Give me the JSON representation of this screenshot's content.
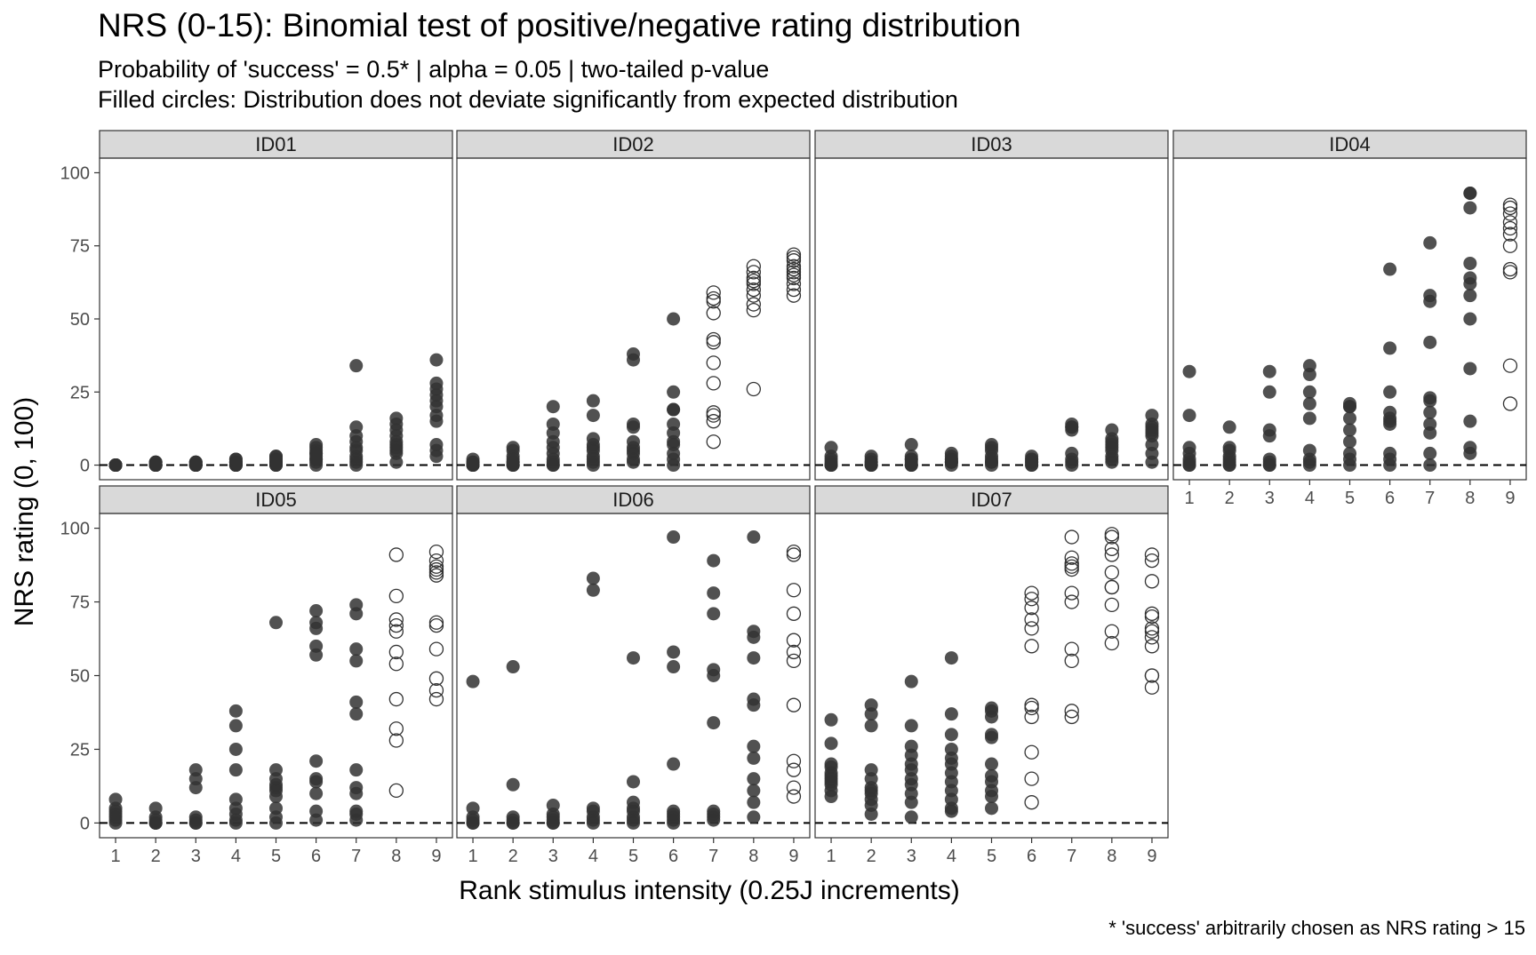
{
  "chart_data": {
    "type": "scatter",
    "title": "NRS (0-15): Binomial test of positive/negative rating distribution",
    "subtitle_lines": [
      "Probability of 'success' = 0.5* | alpha = 0.05 | two-tailed p-value",
      "Filled circles: Distribution does not deviate significantly from expected distribution"
    ],
    "xlabel": "Rank stimulus intensity (0.25J increments)",
    "ylabel": "NRS rating (0, 100)",
    "caption": "* 'success' arbitrarily chosen as NRS rating > 15",
    "x_ticks": [
      1,
      2,
      3,
      4,
      5,
      6,
      7,
      8,
      9
    ],
    "y_ticks": [
      0,
      25,
      50,
      75,
      100
    ],
    "xlim": [
      0.6,
      9.4
    ],
    "ylim": [
      -5,
      105
    ],
    "reference_line": {
      "y": 0,
      "style": "dashed"
    },
    "grid": false,
    "marker_styles": {
      "filled": "#333333",
      "open_stroke": "#333333"
    },
    "panels": [
      {
        "label": "ID01",
        "points": [
          {
            "x": 1,
            "filled": true,
            "values": [
              0,
              0,
              0,
              0,
              0,
              0,
              0,
              0,
              0,
              0
            ]
          },
          {
            "x": 2,
            "filled": true,
            "values": [
              0,
              0,
              0,
              0,
              1,
              1,
              0,
              0,
              0,
              1
            ]
          },
          {
            "x": 3,
            "filled": true,
            "values": [
              0,
              0,
              0,
              1,
              1,
              0,
              0,
              1,
              0,
              0
            ]
          },
          {
            "x": 4,
            "filled": true,
            "values": [
              0,
              0,
              1,
              1,
              2,
              0,
              0,
              0,
              1,
              2
            ]
          },
          {
            "x": 5,
            "filled": true,
            "values": [
              0,
              0,
              1,
              1,
              2,
              3,
              3,
              0,
              1,
              2
            ]
          },
          {
            "x": 6,
            "filled": true,
            "values": [
              0,
              1,
              2,
              3,
              4,
              5,
              6,
              7,
              2,
              4
            ]
          },
          {
            "x": 7,
            "filled": true,
            "values": [
              0,
              1,
              2,
              3,
              5,
              6,
              8,
              10,
              13,
              34
            ]
          },
          {
            "x": 8,
            "filled": true,
            "values": [
              1,
              4,
              5,
              6,
              7,
              8,
              10,
              12,
              14,
              16
            ]
          },
          {
            "x": 9,
            "filled": true,
            "values": [
              3,
              5,
              7,
              15,
              17,
              20,
              22,
              24,
              26,
              28,
              36
            ]
          }
        ]
      },
      {
        "label": "ID02",
        "points": [
          {
            "x": 1,
            "filled": true,
            "values": [
              0,
              0,
              0,
              0,
              1,
              1,
              2,
              0
            ]
          },
          {
            "x": 2,
            "filled": true,
            "values": [
              0,
              0,
              1,
              2,
              3,
              5,
              6,
              0,
              1
            ]
          },
          {
            "x": 3,
            "filled": true,
            "values": [
              0,
              1,
              2,
              4,
              6,
              8,
              11,
              14,
              20,
              0
            ]
          },
          {
            "x": 4,
            "filled": true,
            "values": [
              0,
              1,
              3,
              5,
              6,
              7,
              9,
              17,
              22,
              2
            ]
          },
          {
            "x": 5,
            "filled": true,
            "values": [
              1,
              2,
              4,
              5,
              6,
              8,
              13,
              14,
              36,
              38
            ]
          },
          {
            "x": 6,
            "filled": true,
            "values": [
              0,
              2,
              4,
              7,
              8,
              11,
              14,
              19,
              19,
              25,
              50
            ]
          },
          {
            "x": 7,
            "filled": false,
            "values": [
              8,
              15,
              17,
              18,
              28,
              35,
              42,
              43,
              52,
              56,
              57,
              59
            ]
          },
          {
            "x": 8,
            "filled": false,
            "values": [
              26,
              53,
              55,
              58,
              60,
              62,
              63,
              64,
              66,
              68
            ]
          },
          {
            "x": 9,
            "filled": false,
            "values": [
              58,
              60,
              62,
              64,
              65,
              66,
              67,
              68,
              70,
              71,
              72
            ]
          }
        ]
      },
      {
        "label": "ID03",
        "points": [
          {
            "x": 1,
            "filled": true,
            "values": [
              0,
              0,
              1,
              2,
              3,
              6,
              0
            ]
          },
          {
            "x": 2,
            "filled": true,
            "values": [
              0,
              0,
              1,
              2,
              3,
              0,
              1
            ]
          },
          {
            "x": 3,
            "filled": true,
            "values": [
              0,
              0,
              1,
              2,
              3,
              7,
              0,
              2
            ]
          },
          {
            "x": 4,
            "filled": true,
            "values": [
              0,
              1,
              1,
              2,
              3,
              4,
              1,
              2
            ]
          },
          {
            "x": 5,
            "filled": true,
            "values": [
              0,
              1,
              2,
              3,
              5,
              6,
              7,
              1
            ]
          },
          {
            "x": 6,
            "filled": true,
            "values": [
              0,
              1,
              2,
              3,
              0,
              2,
              1
            ]
          },
          {
            "x": 7,
            "filled": true,
            "values": [
              0,
              1,
              2,
              4,
              12,
              13,
              13,
              14
            ]
          },
          {
            "x": 8,
            "filled": true,
            "values": [
              1,
              2,
              3,
              5,
              6,
              7,
              8,
              9,
              12
            ]
          },
          {
            "x": 9,
            "filled": true,
            "values": [
              1,
              4,
              7,
              10,
              11,
              12,
              13,
              14,
              17
            ]
          }
        ]
      },
      {
        "label": "ID04",
        "points": [
          {
            "x": 1,
            "filled": true,
            "values": [
              0,
              0,
              1,
              2,
              4,
              6,
              17,
              32
            ]
          },
          {
            "x": 2,
            "filled": true,
            "values": [
              0,
              0,
              1,
              2,
              3,
              5,
              6,
              13
            ]
          },
          {
            "x": 3,
            "filled": true,
            "values": [
              0,
              0,
              1,
              2,
              10,
              12,
              25,
              32
            ]
          },
          {
            "x": 4,
            "filled": true,
            "values": [
              0,
              1,
              2,
              5,
              16,
              21,
              25,
              31,
              34
            ]
          },
          {
            "x": 5,
            "filled": true,
            "values": [
              0,
              2,
              4,
              8,
              12,
              16,
              20,
              20,
              21
            ]
          },
          {
            "x": 6,
            "filled": true,
            "values": [
              0,
              2,
              4,
              14,
              15,
              16,
              18,
              25,
              40,
              67
            ]
          },
          {
            "x": 7,
            "filled": true,
            "values": [
              0,
              4,
              11,
              14,
              18,
              22,
              23,
              42,
              56,
              58,
              76
            ]
          },
          {
            "x": 8,
            "filled": true,
            "values": [
              4,
              6,
              15,
              33,
              50,
              58,
              62,
              64,
              69,
              88,
              93,
              93
            ]
          },
          {
            "x": 9,
            "filled": false,
            "values": [
              21,
              34,
              66,
              67,
              75,
              79,
              81,
              83,
              86,
              88,
              89
            ]
          }
        ]
      },
      {
        "label": "ID05",
        "points": [
          {
            "x": 1,
            "filled": true,
            "values": [
              0,
              1,
              2,
              3,
              4,
              5,
              8
            ]
          },
          {
            "x": 2,
            "filled": true,
            "values": [
              0,
              0,
              1,
              2,
              5,
              0
            ]
          },
          {
            "x": 3,
            "filled": true,
            "values": [
              0,
              0,
              1,
              2,
              12,
              15,
              18
            ]
          },
          {
            "x": 4,
            "filled": true,
            "values": [
              0,
              1,
              3,
              5,
              8,
              18,
              25,
              33,
              38
            ]
          },
          {
            "x": 5,
            "filled": true,
            "values": [
              0,
              2,
              5,
              9,
              11,
              12,
              13,
              15,
              18,
              68
            ]
          },
          {
            "x": 6,
            "filled": true,
            "values": [
              1,
              4,
              10,
              14,
              15,
              21,
              57,
              60,
              66,
              68,
              72
            ]
          },
          {
            "x": 7,
            "filled": true,
            "values": [
              1,
              3,
              4,
              10,
              12,
              18,
              37,
              41,
              55,
              59,
              71,
              74
            ]
          },
          {
            "x": 8,
            "filled": false,
            "values": [
              11,
              28,
              32,
              42,
              54,
              58,
              65,
              67,
              69,
              77,
              91
            ]
          },
          {
            "x": 9,
            "filled": false,
            "values": [
              42,
              45,
              49,
              59,
              67,
              68,
              84,
              85,
              86,
              87,
              89,
              92
            ]
          }
        ]
      },
      {
        "label": "ID06",
        "points": [
          {
            "x": 1,
            "filled": true,
            "values": [
              0,
              0,
              1,
              2,
              5,
              48
            ]
          },
          {
            "x": 2,
            "filled": true,
            "values": [
              0,
              0,
              1,
              2,
              13,
              53
            ]
          },
          {
            "x": 3,
            "filled": true,
            "values": [
              0,
              0,
              1,
              2,
              3,
              6
            ]
          },
          {
            "x": 4,
            "filled": true,
            "values": [
              0,
              1,
              2,
              4,
              5,
              79,
              83
            ]
          },
          {
            "x": 5,
            "filled": true,
            "values": [
              0,
              1,
              2,
              4,
              5,
              7,
              14,
              56
            ]
          },
          {
            "x": 6,
            "filled": true,
            "values": [
              0,
              1,
              2,
              3,
              4,
              20,
              53,
              58,
              97
            ]
          },
          {
            "x": 7,
            "filled": true,
            "values": [
              1,
              2,
              3,
              4,
              34,
              50,
              52,
              71,
              78,
              89
            ]
          },
          {
            "x": 8,
            "filled": true,
            "values": [
              2,
              7,
              11,
              15,
              22,
              26,
              40,
              42,
              56,
              63,
              65,
              97
            ]
          },
          {
            "x": 9,
            "filled": false,
            "values": [
              9,
              12,
              18,
              21,
              40,
              55,
              58,
              62,
              71,
              79,
              91,
              92
            ]
          }
        ]
      },
      {
        "label": "ID07",
        "points": [
          {
            "x": 1,
            "filled": true,
            "values": [
              9,
              11,
              13,
              14,
              15,
              16,
              17,
              19,
              20,
              27,
              35
            ]
          },
          {
            "x": 2,
            "filled": true,
            "values": [
              3,
              6,
              8,
              10,
              11,
              12,
              15,
              18,
              33,
              37,
              40
            ]
          },
          {
            "x": 3,
            "filled": true,
            "values": [
              2,
              7,
              10,
              13,
              15,
              18,
              20,
              23,
              26,
              33,
              48
            ]
          },
          {
            "x": 4,
            "filled": true,
            "values": [
              4,
              5,
              8,
              11,
              14,
              17,
              20,
              22,
              25,
              30,
              37,
              56
            ]
          },
          {
            "x": 5,
            "filled": true,
            "values": [
              5,
              9,
              11,
              14,
              16,
              20,
              29,
              30,
              36,
              38,
              39
            ]
          },
          {
            "x": 6,
            "filled": false,
            "values": [
              7,
              15,
              24,
              36,
              39,
              40,
              60,
              66,
              69,
              73,
              76,
              78
            ]
          },
          {
            "x": 7,
            "filled": false,
            "values": [
              36,
              38,
              55,
              59,
              75,
              78,
              86,
              87,
              88,
              90,
              97
            ]
          },
          {
            "x": 8,
            "filled": false,
            "values": [
              61,
              65,
              74,
              80,
              80,
              85,
              91,
              93,
              97,
              98
            ]
          },
          {
            "x": 9,
            "filled": false,
            "values": [
              46,
              50,
              50,
              60,
              63,
              65,
              66,
              70,
              71,
              82,
              89,
              91
            ]
          }
        ]
      }
    ]
  }
}
